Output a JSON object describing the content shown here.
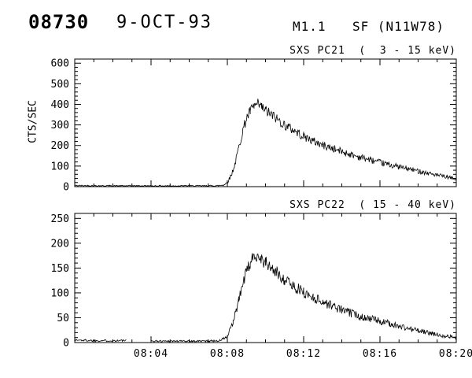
{
  "header": {
    "event_number": "08730",
    "date": "9-OCT-93",
    "flare_class": "M1.1",
    "flare_type_location": "SF (N11W78)"
  },
  "colors": {
    "foreground": "#000000",
    "background": "#ffffff"
  },
  "axis": {
    "x_unit": "minutes after 08:00 UT",
    "xlim": [
      0,
      20
    ],
    "x_tick_values": [
      4,
      8,
      12,
      16,
      20
    ],
    "x_tick_labels": [
      "08:04",
      "08:08",
      "08:12",
      "08:16",
      "08:20"
    ],
    "x_minor_step": 1
  },
  "chart_data": [
    {
      "type": "line",
      "title": "SXS PC21  (  3 - 15 keV)",
      "ylabel": "CTS/SEC",
      "ylim": [
        0,
        620
      ],
      "yticks": [
        0,
        100,
        200,
        300,
        400,
        500,
        600
      ],
      "grid": false,
      "noise_scale": 1.4,
      "seed": 42,
      "points": [
        [
          0,
          5
        ],
        [
          1,
          5
        ],
        [
          2,
          4
        ],
        [
          3,
          4
        ],
        [
          4,
          4
        ],
        [
          5,
          4
        ],
        [
          6,
          4
        ],
        [
          7,
          4
        ],
        [
          7.5,
          5
        ],
        [
          7.8,
          8
        ],
        [
          8.0,
          20
        ],
        [
          8.2,
          55
        ],
        [
          8.4,
          110
        ],
        [
          8.6,
          190
        ],
        [
          8.8,
          270
        ],
        [
          9.0,
          330
        ],
        [
          9.2,
          365
        ],
        [
          9.4,
          390
        ],
        [
          9.6,
          400
        ],
        [
          9.8,
          385
        ],
        [
          10.0,
          370
        ],
        [
          10.3,
          350
        ],
        [
          10.6,
          330
        ],
        [
          11.0,
          300
        ],
        [
          11.5,
          272
        ],
        [
          12.0,
          245
        ],
        [
          12.5,
          222
        ],
        [
          13.0,
          202
        ],
        [
          13.5,
          186
        ],
        [
          14.0,
          170
        ],
        [
          14.5,
          156
        ],
        [
          15.0,
          142
        ],
        [
          15.5,
          130
        ],
        [
          16.0,
          117
        ],
        [
          16.5,
          106
        ],
        [
          17.0,
          96
        ],
        [
          17.5,
          86
        ],
        [
          18.0,
          76
        ],
        [
          18.5,
          66
        ],
        [
          19.0,
          56
        ],
        [
          19.5,
          46
        ],
        [
          20.0,
          36
        ]
      ]
    },
    {
      "type": "line",
      "title": "SXS PC22  ( 15 - 40 keV)",
      "ylabel": "CTS/SEC",
      "ylim": [
        0,
        260
      ],
      "yticks": [
        0,
        50,
        100,
        150,
        200,
        250
      ],
      "grid": false,
      "noise_scale": 1.1,
      "seed": 1337,
      "points": [
        [
          0,
          5
        ],
        [
          1,
          4
        ],
        [
          2,
          4
        ],
        [
          2.7,
          4
        ],
        [
          2.8,
          null
        ],
        [
          4.0,
          3
        ],
        [
          5,
          3
        ],
        [
          6,
          3
        ],
        [
          7,
          3
        ],
        [
          7.6,
          4
        ],
        [
          8.0,
          12
        ],
        [
          8.3,
          40
        ],
        [
          8.6,
          85
        ],
        [
          8.9,
          130
        ],
        [
          9.2,
          160
        ],
        [
          9.5,
          178
        ],
        [
          9.7,
          172
        ],
        [
          10.0,
          160
        ],
        [
          10.5,
          143
        ],
        [
          11.0,
          127
        ],
        [
          11.5,
          113
        ],
        [
          12.0,
          101
        ],
        [
          12.5,
          91
        ],
        [
          13.0,
          82
        ],
        [
          13.5,
          74
        ],
        [
          14.0,
          66
        ],
        [
          14.5,
          59
        ],
        [
          15.0,
          53
        ],
        [
          15.5,
          48
        ],
        [
          16.0,
          43
        ],
        [
          16.5,
          38
        ],
        [
          17.0,
          33
        ],
        [
          17.5,
          28
        ],
        [
          18.0,
          24
        ],
        [
          18.5,
          20
        ],
        [
          19.0,
          16
        ],
        [
          19.5,
          13
        ],
        [
          20.0,
          10
        ]
      ]
    }
  ]
}
